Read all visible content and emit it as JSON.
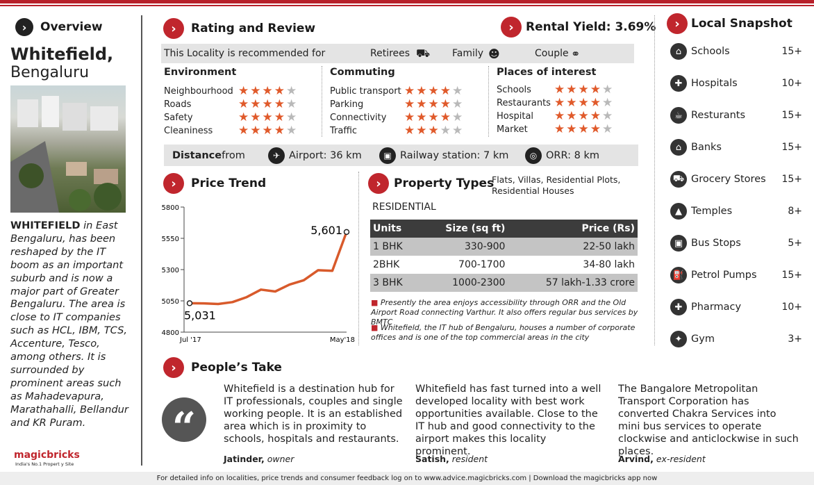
{
  "overview": {
    "label": "Overview",
    "city": "Whitefield,",
    "region": "Bengaluru",
    "desc_bold": "WHITEFIELD",
    "desc": " in East Bengaluru, has been reshaped by the IT boom as an important suburb and is now a major part of Greater Bengaluru. The area is close to IT companies such as HCL, IBM, TCS, Accenture, Tesco, among others. It is surrounded by prominent areas such as Mahadevapura, Marathahalli, Bellandur and KR Puram.",
    "logo": "magicbricks",
    "tagline": "India's No.1 Propert y Site"
  },
  "rating": {
    "title": "Rating and Review",
    "rental_yield": "Rental Yield: 3.69%",
    "recommended_label": "This Locality is recommended for",
    "recommended": [
      "Retirees",
      "Family",
      "Couple"
    ],
    "groups": [
      {
        "title": "Environment",
        "items": [
          {
            "label": "Neighbourhood",
            "stars": 4
          },
          {
            "label": "Roads",
            "stars": 4
          },
          {
            "label": "Safety",
            "stars": 4
          },
          {
            "label": "Cleaniness",
            "stars": 4
          }
        ]
      },
      {
        "title": "Commuting",
        "items": [
          {
            "label": "Public transport",
            "stars": 4
          },
          {
            "label": "Parking",
            "stars": 4
          },
          {
            "label": "Connectivity",
            "stars": 4
          },
          {
            "label": "Traffic",
            "stars": 3
          }
        ]
      },
      {
        "title": "Places of interest",
        "items": [
          {
            "label": "Schools",
            "stars": 4
          },
          {
            "label": "Restaurants",
            "stars": 4
          },
          {
            "label": "Hospital",
            "stars": 4
          },
          {
            "label": "Market",
            "stars": 4
          }
        ]
      }
    ],
    "distance_label_bold": "Distance",
    "distance_label": " from",
    "distances": [
      "Airport: 36 km",
      "Railway station: 7 km",
      "ORR: 8 km"
    ]
  },
  "snapshot": {
    "title": "Local Snapshot",
    "items": [
      {
        "label": "Schools",
        "count": "15+",
        "icon": "school-icon"
      },
      {
        "label": "Hospitals",
        "count": "10+",
        "icon": "hospital-icon"
      },
      {
        "label": "Resturants",
        "count": "15+",
        "icon": "restaurant-icon"
      },
      {
        "label": "Banks",
        "count": "15+",
        "icon": "bank-icon"
      },
      {
        "label": "Grocery Stores",
        "count": "15+",
        "icon": "cart-icon"
      },
      {
        "label": "Temples",
        "count": "8+",
        "icon": "temple-icon"
      },
      {
        "label": "Bus Stops",
        "count": "5+",
        "icon": "bus-icon"
      },
      {
        "label": "Petrol Pumps",
        "count": "15+",
        "icon": "fuel-icon"
      },
      {
        "label": "Pharmacy",
        "count": "10+",
        "icon": "pharmacy-icon"
      },
      {
        "label": "Gym",
        "count": "3+",
        "icon": "gym-icon"
      }
    ]
  },
  "chart_data": {
    "type": "line",
    "title": "Price Trend",
    "x_start": "Jul '17",
    "x_end": "May'18",
    "values": [
      5031,
      5030,
      5025,
      5040,
      5080,
      5140,
      5125,
      5180,
      5215,
      5295,
      5290,
      5601
    ],
    "yticks": [
      4800,
      5050,
      5300,
      5550,
      5800
    ],
    "ylim": [
      4800,
      5800
    ],
    "start_label": "5,031",
    "end_label": "5,601",
    "color": "#d85a2b"
  },
  "property": {
    "title": "Property Types",
    "types": "Flats, Villas, Residential Plots, Residential Houses",
    "residential": "RESIDENTIAL",
    "headers": [
      "Units",
      "Size (sq ft)",
      "Price (Rs)"
    ],
    "rows": [
      [
        "1 BHK",
        "330-900",
        "22-50 lakh"
      ],
      [
        "2BHK",
        "700-1700",
        "34-80 lakh"
      ],
      [
        "3 BHK",
        "1000-2300",
        "57 lakh-1.33 crore"
      ]
    ],
    "notes": [
      "Presently the area enjoys accessibility through ORR and the Old Airport Road connecting Varthur. It also offers regular bus services by BMTC",
      "Whitefield, the IT hub of Bengaluru, houses a number of corporate offices and is one of the top commercial areas in the city"
    ]
  },
  "peoples_take": {
    "title": "People’s Take",
    "reviews": [
      {
        "text": "Whitefield is a destination hub for IT professionals, couples and single working people. It is an established area which is in proximity to schools, hospitals and restaurants.",
        "name": "Jatinder,",
        "role": "owner"
      },
      {
        "text": "Whitefield has fast turned into a well developed locality with best work opportunities available. Close to the IT hub and good connectivity to the airport makes this locality prominent.",
        "name": "Satish,",
        "role": "resident"
      },
      {
        "text": "The Bangalore Metropolitan Transport Corporation has converted Chakra Services into mini bus services to operate clockwise and anticlockwise in such places.",
        "name": "Arvind,",
        "role": "ex-resident"
      }
    ]
  },
  "footer": "For detailed info on localities, price trends and consumer feedback log on to www.advice.magicbricks.com | Download the magicbricks app now"
}
